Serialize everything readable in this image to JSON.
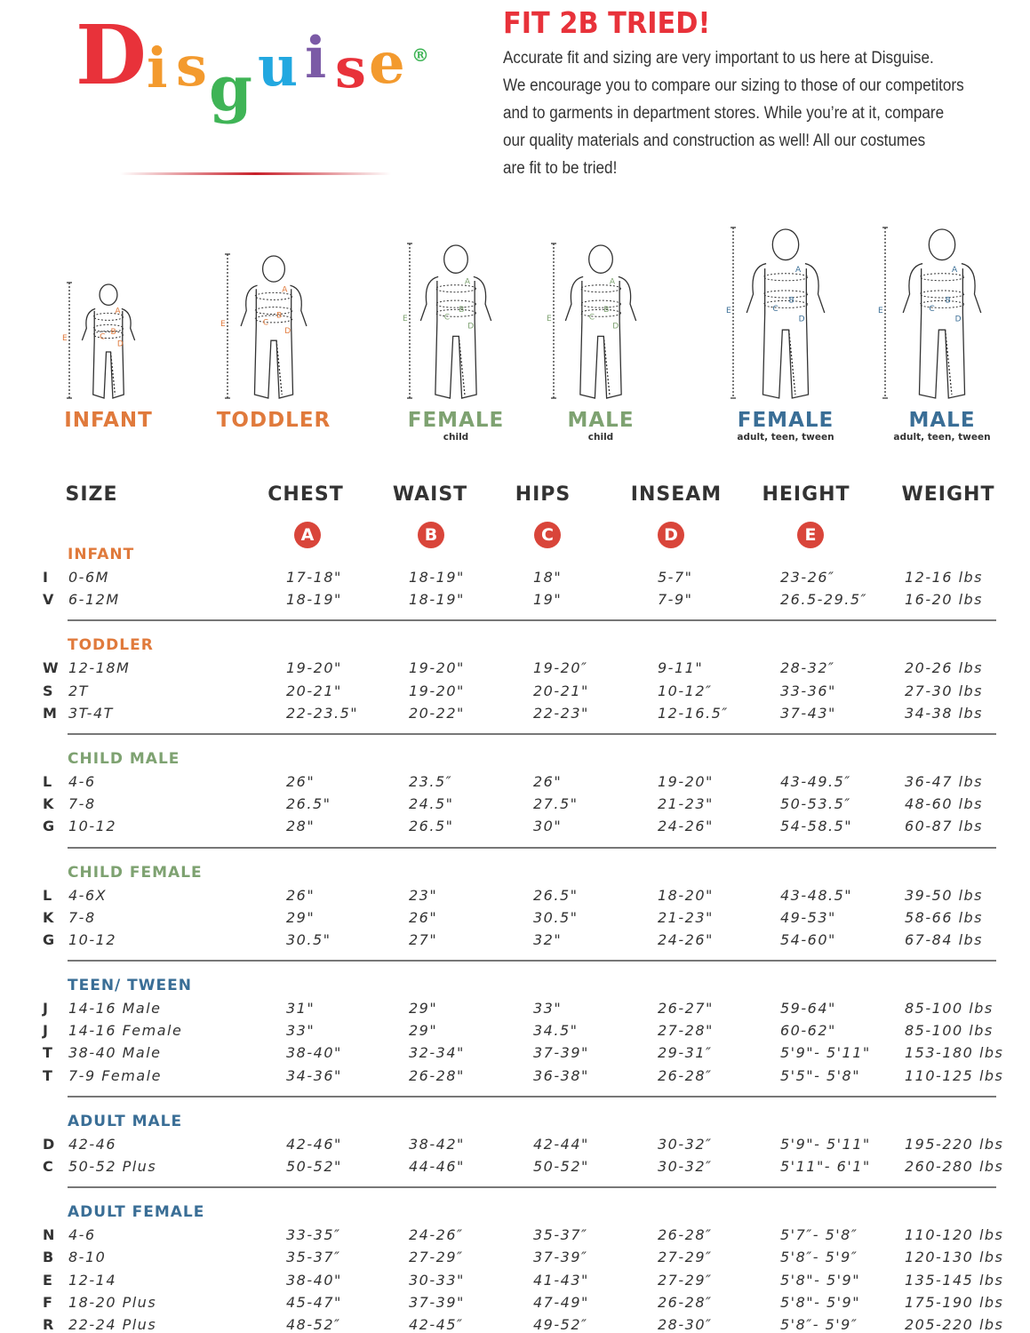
{
  "brand": {
    "logo_text": "Disguise",
    "registered": "®",
    "logo_letters": [
      "D",
      "i",
      "s",
      "g",
      "u",
      "i",
      "s",
      "e"
    ],
    "logo_colors": [
      "#e8323a",
      "#f39a2e",
      "#f39a2e",
      "#3fb456",
      "#22a8e0",
      "#7b5aa6",
      "#e8323a",
      "#f39a2e"
    ]
  },
  "header": {
    "title": "FIT 2B TRIED!",
    "intro_lines": [
      "Accurate fit and sizing are very important to us here at Disguise.",
      "We encourage you to compare our sizing to those of our competitors",
      "and to garments in department stores. While you’re at it, compare",
      "our quality materials and construction as well! All our costumes",
      "are fit to be tried!"
    ]
  },
  "colors": {
    "red": "#d9453a",
    "orange": "#e07a3c",
    "green": "#7ea271",
    "blue": "#3a6e96",
    "title_red": "#e8323a"
  },
  "figures": [
    {
      "label": "INFANT",
      "sub": "",
      "color": "#e07a3c",
      "marks": [
        "A",
        "B",
        "C",
        "D",
        "E"
      ]
    },
    {
      "label": "TODDLER",
      "sub": "",
      "color": "#e07a3c",
      "marks": [
        "A",
        "B",
        "C",
        "D",
        "E"
      ]
    },
    {
      "label": "FEMALE",
      "sub": "child",
      "color": "#7ea271",
      "marks": [
        "A",
        "B",
        "C",
        "D",
        "E"
      ]
    },
    {
      "label": "MALE",
      "sub": "child",
      "color": "#7ea271",
      "marks": [
        "A",
        "B",
        "C",
        "D",
        "E"
      ]
    },
    {
      "label": "FEMALE",
      "sub": "adult, teen, tween",
      "color": "#3a6e96",
      "marks": [
        "A",
        "B",
        "C",
        "D",
        "E"
      ]
    },
    {
      "label": "MALE",
      "sub": "adult, teen, tween",
      "color": "#3a6e96",
      "marks": [
        "A",
        "B",
        "C",
        "D",
        "E"
      ]
    }
  ],
  "columns": [
    {
      "label": "SIZE",
      "badge": ""
    },
    {
      "label": "CHEST",
      "badge": "A"
    },
    {
      "label": "WAIST",
      "badge": "B"
    },
    {
      "label": "HIPS",
      "badge": "C"
    },
    {
      "label": "INSEAM",
      "badge": "D"
    },
    {
      "label": "HEIGHT",
      "badge": "E"
    },
    {
      "label": "WEIGHT",
      "badge": ""
    }
  ],
  "sections": [
    {
      "title": "INFANT",
      "color": "#e07a3c",
      "rows": [
        [
          "I",
          "0-6M",
          "17-18\"",
          "18-19\"",
          "18\"",
          "5-7\"",
          "23-26″",
          "12-16 lbs"
        ],
        [
          "V",
          "6-12M",
          "18-19\"",
          "18-19\"",
          "19\"",
          "7-9\"",
          "26.5-29.5″",
          "16-20 lbs"
        ]
      ]
    },
    {
      "title": "TODDLER",
      "color": "#e07a3c",
      "rows": [
        [
          "W",
          "12-18M",
          "19-20\"",
          "19-20\"",
          "19-20″",
          "9-11\"",
          "28-32″",
          "20-26 lbs"
        ],
        [
          "S",
          "2T",
          "20-21\"",
          "19-20\"",
          "20-21\"",
          "10-12″",
          "33-36\"",
          "27-30 lbs"
        ],
        [
          "M",
          "3T-4T",
          "22-23.5\"",
          "20-22\"",
          "22-23\"",
          "12-16.5″",
          "37-43\"",
          "34-38 lbs"
        ]
      ]
    },
    {
      "title": "CHILD MALE",
      "color": "#7ea271",
      "rows": [
        [
          "L",
          "4-6",
          "26\"",
          "23.5″",
          "26\"",
          "19-20\"",
          "43-49.5″",
          "36-47 lbs"
        ],
        [
          "K",
          "7-8",
          "26.5\"",
          "24.5\"",
          "27.5\"",
          "21-23\"",
          "50-53.5″",
          "48-60 lbs"
        ],
        [
          "G",
          "10-12",
          "28\"",
          "26.5\"",
          "30\"",
          "24-26\"",
          "54-58.5\"",
          "60-87 lbs"
        ]
      ]
    },
    {
      "title": "CHILD FEMALE",
      "color": "#7ea271",
      "rows": [
        [
          "L",
          "4-6X",
          "26\"",
          "23\"",
          "26.5\"",
          "18-20\"",
          "43-48.5\"",
          "39-50 lbs"
        ],
        [
          "K",
          "7-8",
          "29\"",
          "26\"",
          "30.5\"",
          "21-23\"",
          "49-53\"",
          "58-66 lbs"
        ],
        [
          "G",
          "10-12",
          "30.5\"",
          "27\"",
          "32\"",
          "24-26\"",
          "54-60\"",
          "67-84 lbs"
        ]
      ]
    },
    {
      "title": "TEEN/ TWEEN",
      "color": "#3a6e96",
      "rows": [
        [
          "J",
          "14-16 Male",
          "31\"",
          "29\"",
          "33\"",
          "26-27\"",
          "59-64\"",
          "85-100 lbs"
        ],
        [
          "J",
          "14-16 Female",
          "33\"",
          "29\"",
          "34.5\"",
          "27-28\"",
          "60-62\"",
          "85-100 lbs"
        ],
        [
          "T",
          "38-40 Male",
          "38-40\"",
          "32-34\"",
          "37-39\"",
          "29-31″",
          "5'9\"- 5'11\"",
          "153-180 lbs"
        ],
        [
          "T",
          "7-9 Female",
          "34-36\"",
          "26-28\"",
          "36-38\"",
          "26-28″",
          "5'5\"- 5'8\"",
          "110-125 lbs"
        ]
      ]
    },
    {
      "title": "ADULT MALE",
      "color": "#3a6e96",
      "rows": [
        [
          "D",
          "42-46",
          "42-46\"",
          "38-42\"",
          "42-44\"",
          "30-32″",
          "5'9\"- 5'11\"",
          "195-220 lbs"
        ],
        [
          "C",
          "50-52 Plus",
          "50-52\"",
          "44-46\"",
          "50-52\"",
          "30-32″",
          "5'11\"- 6'1\"",
          "260-280 lbs"
        ]
      ]
    },
    {
      "title": "ADULT FEMALE",
      "color": "#3a6e96",
      "rows": [
        [
          "N",
          "4-6",
          "33-35″",
          "24-26″",
          "35-37″",
          "26-28″",
          "5'7″- 5'8″",
          "110-120 lbs"
        ],
        [
          "B",
          "8-10",
          "35-37″",
          "27-29″",
          "37-39″",
          "27-29″",
          "5'8″- 5'9″",
          "120-130 lbs"
        ],
        [
          "E",
          "12-14",
          "38-40\"",
          "30-33\"",
          "41-43\"",
          "27-29″",
          "5'8\"- 5'9\"",
          "135-145 lbs"
        ],
        [
          "F",
          "18-20 Plus",
          "45-47\"",
          "37-39\"",
          "47-49\"",
          "26-28″",
          "5'8\"- 5'9\"",
          "175-190 lbs"
        ],
        [
          "R",
          "22-24 Plus",
          "48-52″",
          "42-45″",
          "49-52″",
          "28-30″",
          "5'8″- 5'9″",
          "205-220 lbs"
        ]
      ]
    }
  ]
}
